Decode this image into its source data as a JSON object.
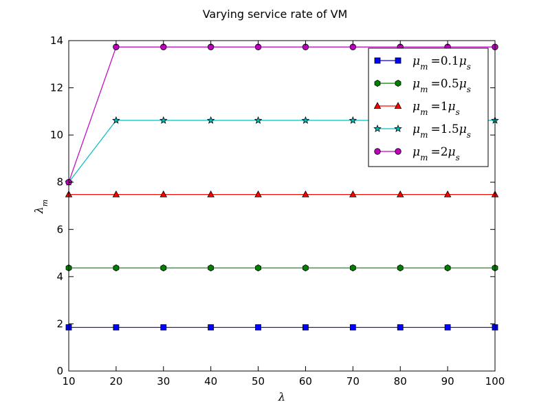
{
  "chart_data": {
    "type": "line",
    "title": "Varying service rate of VM",
    "xlabel": "λ",
    "ylabel": "λ_m",
    "xlim": [
      10,
      100
    ],
    "ylim": [
      0,
      14
    ],
    "x_ticks": [
      10,
      20,
      30,
      40,
      50,
      60,
      70,
      80,
      90,
      100
    ],
    "y_ticks": [
      0,
      2,
      4,
      6,
      8,
      10,
      12,
      14
    ],
    "x": [
      10,
      20,
      30,
      40,
      50,
      60,
      70,
      80,
      90,
      100
    ],
    "grid": false,
    "legend_position": "top-right",
    "series": [
      {
        "name": "μ_m = 0.1μ_s",
        "color": "#0000ff",
        "marker": "square",
        "values": [
          1.85,
          1.85,
          1.85,
          1.85,
          1.85,
          1.85,
          1.85,
          1.85,
          1.85,
          1.85
        ]
      },
      {
        "name": "μ_m = 0.5μ_s",
        "color": "#008000",
        "marker": "hexagon",
        "values": [
          4.37,
          4.37,
          4.37,
          4.37,
          4.37,
          4.37,
          4.37,
          4.37,
          4.37,
          4.37
        ]
      },
      {
        "name": "μ_m = 1μ_s",
        "color": "#ff0000",
        "marker": "triangle",
        "values": [
          7.48,
          7.48,
          7.48,
          7.48,
          7.48,
          7.48,
          7.48,
          7.48,
          7.48,
          7.48
        ]
      },
      {
        "name": "μ_m = 1.5μ_s",
        "color": "#00bfbf",
        "marker": "star",
        "values": [
          8.0,
          10.62,
          10.62,
          10.62,
          10.62,
          10.62,
          10.62,
          10.62,
          10.62,
          10.62
        ]
      },
      {
        "name": "μ_m = 2μ_s",
        "color": "#bf00bf",
        "marker": "circle",
        "values": [
          8.0,
          13.73,
          13.73,
          13.73,
          13.73,
          13.73,
          13.73,
          13.73,
          13.73,
          13.73
        ]
      }
    ],
    "legend": [
      {
        "pre": "0.1"
      },
      {
        "pre": "0.5"
      },
      {
        "pre": "1"
      },
      {
        "pre": "1.5"
      },
      {
        "pre": "2"
      }
    ]
  }
}
